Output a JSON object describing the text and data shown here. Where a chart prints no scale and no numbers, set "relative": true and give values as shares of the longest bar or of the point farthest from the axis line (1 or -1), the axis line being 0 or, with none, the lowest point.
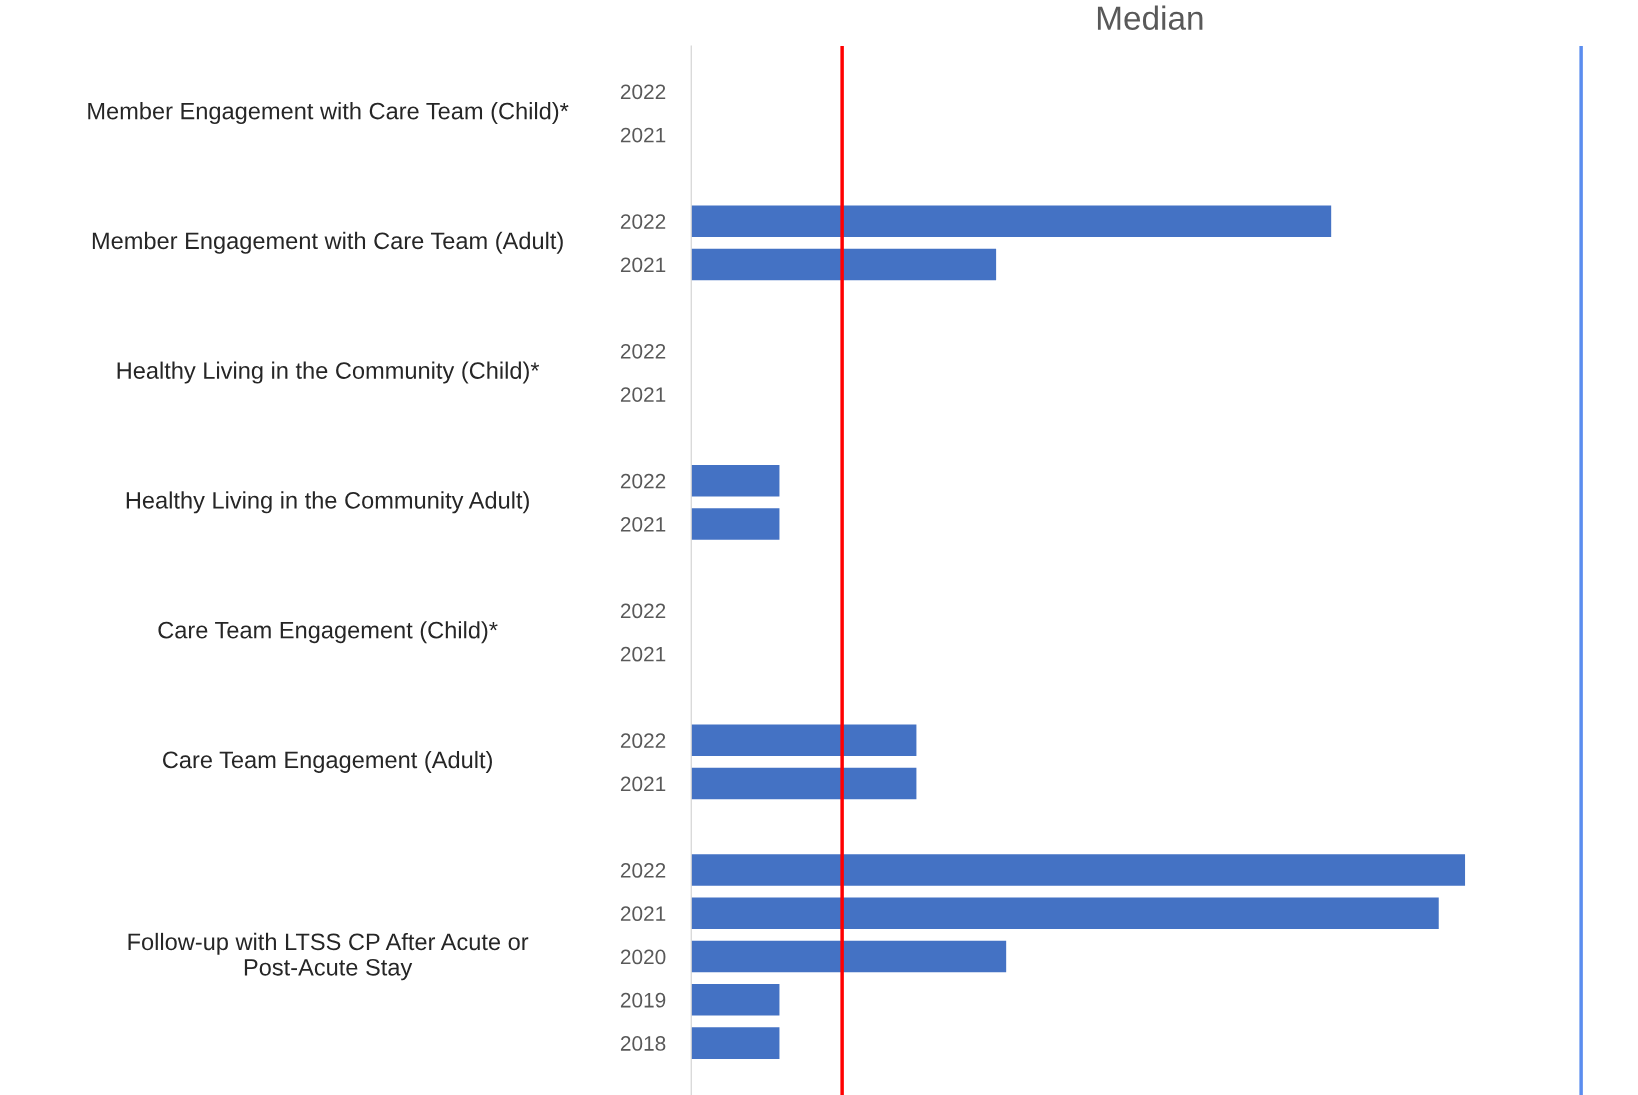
{
  "chart_data": {
    "type": "bar",
    "orientation": "horizontal",
    "relative": true,
    "title": "Median",
    "categories": [
      "2022",
      "2021",
      null,
      "2022",
      "2021",
      null,
      "2022",
      "2021",
      null,
      "2022",
      "2021",
      null,
      "2022",
      "2021",
      null,
      "2022",
      "2021",
      null,
      "2022",
      "2021",
      "2020",
      "2019",
      "2018"
    ],
    "values": [
      null,
      null,
      null,
      0.827,
      0.394,
      null,
      null,
      null,
      null,
      0.114,
      0.114,
      null,
      null,
      null,
      null,
      0.291,
      0.291,
      null,
      1,
      0.966,
      0.407,
      0.114,
      0.114
    ],
    "color": "#4472c4",
    "annotations": [
      "Member Engagement with Care Team (Child)*",
      "Member Engagement with Care Team (Adult)",
      "Healthy Living in the Community (Child)*",
      "Healthy Living in the Community Adult)",
      "Care Team Engagement (Child)*",
      "Care Team Engagement (Adult)",
      "Follow-up with LTSS CP After Acute or\nPost-Acute Stay"
    ],
    "ref_lines": [
      {
        "axis": "x",
        "value": 0.195,
        "color": "#ff0000"
      },
      {
        "axis": "x",
        "value": 1.15,
        "color": "#5b8def"
      }
    ],
    "grid": false,
    "legend": false
  }
}
